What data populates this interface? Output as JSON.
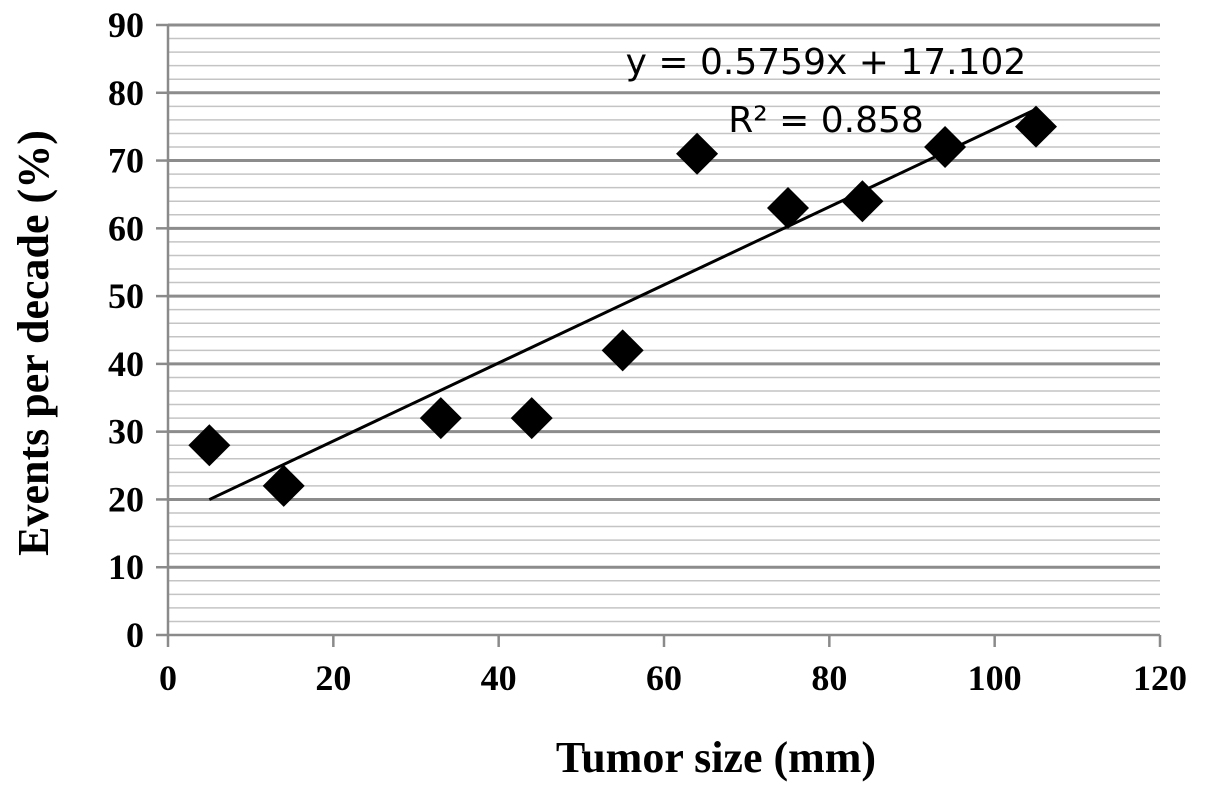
{
  "chart_data": {
    "type": "scatter",
    "title": "",
    "xlabel": "Tumor size (mm)",
    "ylabel": "Events per decade (%)",
    "xlim": [
      0,
      120
    ],
    "ylim": [
      0,
      90
    ],
    "x_ticks": [
      "0",
      "20",
      "40",
      "60",
      "80",
      "100",
      "120"
    ],
    "y_ticks": [
      "0",
      "10",
      "20",
      "30",
      "40",
      "50",
      "60",
      "70",
      "80",
      "90"
    ],
    "grid": "major and minor horizontal gridlines",
    "marker": "diamond",
    "marker_color": "#000000",
    "points": [
      {
        "x": 5,
        "y": 28
      },
      {
        "x": 14,
        "y": 22
      },
      {
        "x": 33,
        "y": 32
      },
      {
        "x": 44,
        "y": 32
      },
      {
        "x": 55,
        "y": 42
      },
      {
        "x": 64,
        "y": 71
      },
      {
        "x": 75,
        "y": 63
      },
      {
        "x": 84,
        "y": 64
      },
      {
        "x": 94,
        "y": 72
      },
      {
        "x": 105,
        "y": 75
      }
    ],
    "trendline": {
      "type": "linear",
      "slope": 0.5759,
      "intercept": 17.102,
      "x_range": [
        5,
        105
      ],
      "equation": "y = 0.5759x + 17.102",
      "r_squared": "R² = 0.858"
    }
  }
}
